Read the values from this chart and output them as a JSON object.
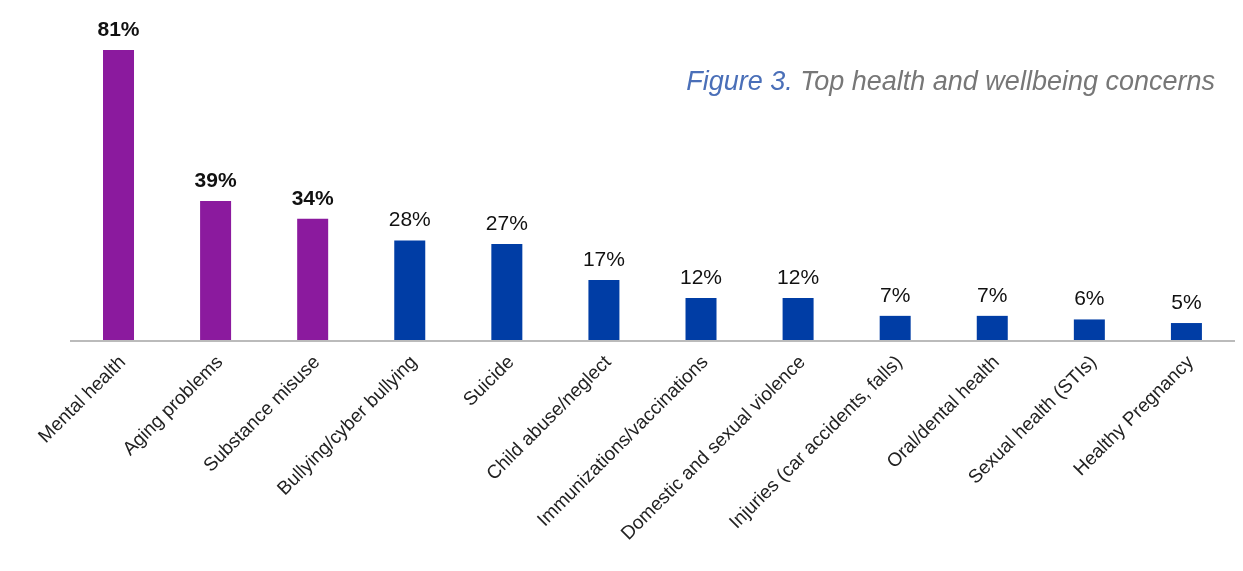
{
  "chart_data": {
    "type": "bar",
    "title": "Figure 3. Top health and wellbeing concerns",
    "categories": [
      "Mental health",
      "Aging problems",
      "Substance misuse",
      "Bullying/cyber bullying",
      "Suicide",
      "Child abuse/neglect",
      "Immunizations/vaccinations",
      "Domestic and sexual violence",
      "Injuries (car accidents, falls)",
      "Oral/dental health",
      "Sexual health (STIs)",
      "Healthy Pregnancy"
    ],
    "values": [
      81,
      39,
      34,
      28,
      27,
      17,
      12,
      12,
      7,
      7,
      6,
      5
    ],
    "colors": [
      "#8b1a9e",
      "#8b1a9e",
      "#8b1a9e",
      "#003da5",
      "#003da5",
      "#003da5",
      "#003da5",
      "#003da5",
      "#003da5",
      "#003da5",
      "#003da5",
      "#003da5"
    ],
    "value_labels": [
      "81%",
      "39%",
      "34%",
      "28%",
      "27%",
      "17%",
      "12%",
      "12%",
      "7%",
      "7%",
      "6%",
      "5%"
    ]
  }
}
